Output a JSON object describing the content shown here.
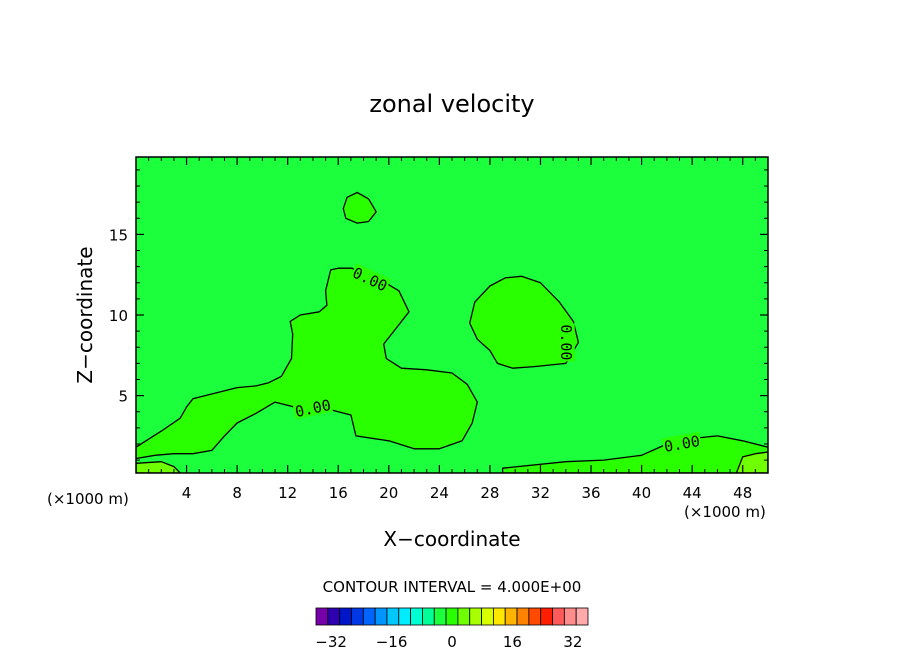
{
  "chart_data": {
    "type": "contour",
    "title": "zonal velocity",
    "xlabel": "X−coordinate",
    "ylabel": "Z−coordinate",
    "x_unit_left": "(×1000 m)",
    "x_unit_right": "(×1000 m)",
    "xlim": [
      0,
      50
    ],
    "ylim": [
      0.2,
      19.8
    ],
    "x_ticks": [
      4,
      8,
      12,
      16,
      20,
      24,
      28,
      32,
      36,
      40,
      44,
      48
    ],
    "y_ticks": [
      5,
      10,
      15
    ],
    "contour_interval_text": "CONTOUR INTERVAL = 4.000E+00",
    "contour_labels": [
      {
        "text": "0.00",
        "x": 18.5,
        "y": 12.2,
        "angle": 25
      },
      {
        "text": "0.00",
        "x": 14.0,
        "y": 4.2,
        "angle": -12
      },
      {
        "text": "0.00",
        "x": 34.0,
        "y": 8.3,
        "angle": 90
      },
      {
        "text": "0.00",
        "x": 43.2,
        "y": 2.0,
        "angle": -10
      }
    ],
    "colorbar": {
      "min": -36,
      "max": 36,
      "step": 4,
      "tick_values": [
        -32,
        -16,
        0,
        16,
        32
      ],
      "tick_labels": [
        "−32",
        "−16",
        "0",
        "16",
        "32"
      ],
      "colors": [
        "#7700aa",
        "#2f00b0",
        "#0014c8",
        "#0038e6",
        "#0064ff",
        "#0094ff",
        "#00c8ff",
        "#00ecff",
        "#00ffd2",
        "#00ff96",
        "#1cff3c",
        "#2aff00",
        "#70ff00",
        "#a8ff00",
        "#d8ff00",
        "#ffe800",
        "#ffb400",
        "#ff8200",
        "#ff4a00",
        "#ff1e00",
        "#ff5a5a",
        "#ff8c8c",
        "#ffaaaa"
      ]
    },
    "regions": [
      {
        "name": "background",
        "value_range": [
          -4,
          0
        ],
        "color": "#1cff3c",
        "points": [
          [
            0,
            0.2
          ],
          [
            50,
            0.2
          ],
          [
            50,
            19.8
          ],
          [
            0,
            19.8
          ]
        ]
      },
      {
        "name": "central-positive-region",
        "value_range": [
          0,
          4
        ],
        "color": "#2aff00",
        "points": [
          [
            0,
            1.8
          ],
          [
            2,
            2.8
          ],
          [
            3.5,
            3.6
          ],
          [
            4,
            4.3
          ],
          [
            4.5,
            4.8
          ],
          [
            6.5,
            5.2
          ],
          [
            8,
            5.5
          ],
          [
            9.5,
            5.6
          ],
          [
            10.5,
            5.8
          ],
          [
            11.5,
            6.2
          ],
          [
            12.3,
            7.3
          ],
          [
            12.4,
            8.8
          ],
          [
            12.2,
            9.6
          ],
          [
            13,
            10.0
          ],
          [
            14.5,
            10.2
          ],
          [
            15.1,
            10.6
          ],
          [
            15.0,
            11.5
          ],
          [
            15.4,
            12.8
          ],
          [
            16.0,
            12.9
          ],
          [
            17.1,
            12.9
          ],
          [
            17.8,
            12.5
          ],
          [
            19.5,
            12.1
          ],
          [
            20.8,
            11.5
          ],
          [
            21.6,
            10.2
          ],
          [
            20.4,
            9.0
          ],
          [
            19.6,
            8.2
          ],
          [
            19.8,
            7.3
          ],
          [
            21.0,
            6.7
          ],
          [
            23.0,
            6.6
          ],
          [
            25.0,
            6.4
          ],
          [
            26.2,
            5.7
          ],
          [
            27.0,
            4.6
          ],
          [
            26.6,
            3.3
          ],
          [
            25.8,
            2.2
          ],
          [
            24.0,
            1.7
          ],
          [
            22.0,
            1.7
          ],
          [
            20.0,
            2.2
          ],
          [
            17.4,
            2.5
          ],
          [
            17.0,
            3.8
          ],
          [
            15.0,
            4.2
          ],
          [
            13.0,
            4.2
          ],
          [
            11.0,
            4.6
          ],
          [
            9.5,
            3.9
          ],
          [
            8.0,
            3.3
          ],
          [
            7.0,
            2.5
          ],
          [
            6.0,
            1.6
          ],
          [
            4.5,
            1.4
          ],
          [
            3.0,
            1.4
          ],
          [
            1.5,
            1.3
          ],
          [
            0,
            1.1
          ]
        ]
      },
      {
        "name": "right-positive-region",
        "value_range": [
          0,
          4
        ],
        "color": "#2aff00",
        "points": [
          [
            28.0,
            7.8
          ],
          [
            27.0,
            8.5
          ],
          [
            26.4,
            9.5
          ],
          [
            26.8,
            10.8
          ],
          [
            28.0,
            11.8
          ],
          [
            29.2,
            12.3
          ],
          [
            30.5,
            12.4
          ],
          [
            32.0,
            12.0
          ],
          [
            33.5,
            10.8
          ],
          [
            34.6,
            9.6
          ],
          [
            35.0,
            8.3
          ],
          [
            34.0,
            7.0
          ],
          [
            31.5,
            6.8
          ],
          [
            29.8,
            6.7
          ],
          [
            28.6,
            7.0
          ]
        ]
      },
      {
        "name": "top-positive-region",
        "value_range": [
          0,
          4
        ],
        "color": "#2aff00",
        "points": [
          [
            16.4,
            16.6
          ],
          [
            16.7,
            17.3
          ],
          [
            17.5,
            17.6
          ],
          [
            18.4,
            17.2
          ],
          [
            19.0,
            16.4
          ],
          [
            18.4,
            15.8
          ],
          [
            17.5,
            15.7
          ],
          [
            16.6,
            16.0
          ]
        ]
      },
      {
        "name": "right-near-surface-region",
        "value_range": [
          0,
          4
        ],
        "color": "#2aff00",
        "points": [
          [
            29.0,
            0.5
          ],
          [
            34.0,
            0.9
          ],
          [
            37.0,
            1.0
          ],
          [
            40.0,
            1.3
          ],
          [
            42.0,
            2.0
          ],
          [
            43.5,
            2.3
          ],
          [
            46.0,
            2.5
          ],
          [
            48.0,
            2.2
          ],
          [
            50,
            1.8
          ],
          [
            50,
            0.2
          ],
          [
            29.0,
            0.2
          ]
        ]
      },
      {
        "name": "bottom-left-positive-strip",
        "value_range": [
          4,
          8
        ],
        "color": "#70ff00",
        "points": [
          [
            0,
            0.2
          ],
          [
            0,
            0.8
          ],
          [
            2,
            0.9
          ],
          [
            3,
            0.6
          ],
          [
            3.5,
            0.2
          ]
        ]
      },
      {
        "name": "bottom-right-positive-strip",
        "value_range": [
          4,
          8
        ],
        "color": "#70ff00",
        "points": [
          [
            47.5,
            0.2
          ],
          [
            48,
            1.2
          ],
          [
            49,
            1.4
          ],
          [
            50,
            1.5
          ],
          [
            50,
            0.2
          ]
        ]
      }
    ]
  }
}
